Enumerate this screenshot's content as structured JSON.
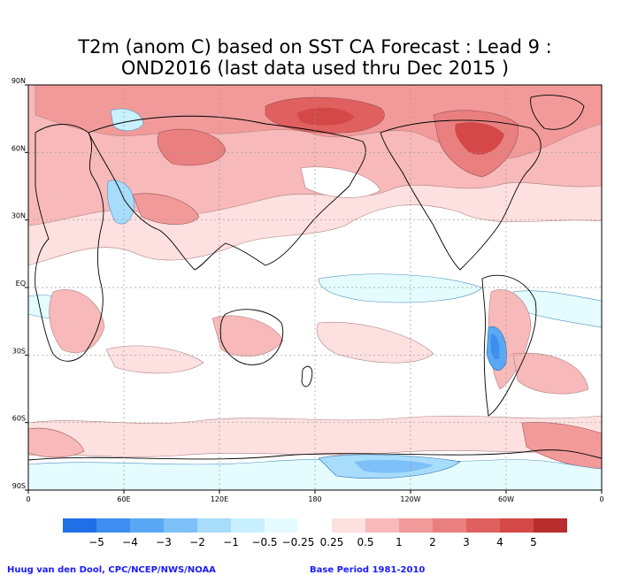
{
  "title_line1": "T2m (anom C) based on SST CA Forecast : Lead 9 :",
  "title_line2": "OND2016 (last data used thru Dec 2015 )",
  "y_ticks": [
    "90N",
    "60N",
    "30N",
    "EQ",
    "30S",
    "60S",
    "90S"
  ],
  "x_ticks": [
    "0",
    "60E",
    "120E",
    "180",
    "120W",
    "60W",
    "0"
  ],
  "colorbar": {
    "colors": [
      "#1f6fe6",
      "#3d8ef0",
      "#5aa8f4",
      "#7dc0f7",
      "#a8dcfb",
      "#c9f0fd",
      "#e5fcfe",
      "#ffffff",
      "#fde0e0",
      "#f7b9b9",
      "#f29a9a",
      "#ea7f7f",
      "#e06060",
      "#d44848",
      "#b82e2e"
    ],
    "labels": [
      "-5",
      "-4",
      "-3",
      "-2",
      "-1",
      "-0.5",
      "-0.25",
      "0.25",
      "0.5",
      "1",
      "2",
      "3",
      "4",
      "5"
    ]
  },
  "credit": "Huug van den Dool, CPC/NCEP/NWS/NOAA",
  "base_period": "Base Period 1981-2010"
}
